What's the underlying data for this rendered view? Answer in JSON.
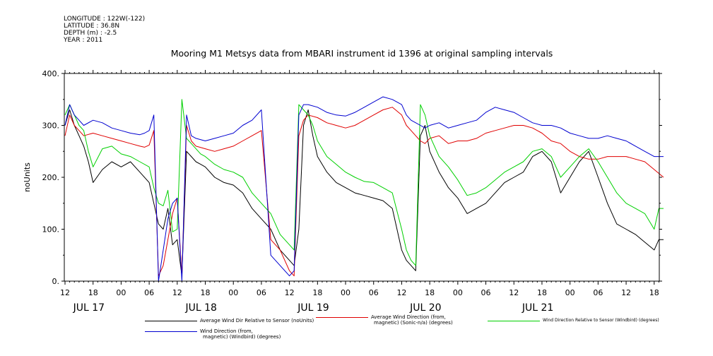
{
  "meta": {
    "longitude": "LONGITUDE : 122W(-122)",
    "latitude": "LATITUDE : 36.8N",
    "depth": "DEPTH (m) : -2.5",
    "year": "YEAR : 2011"
  },
  "chart_data": {
    "type": "line",
    "title": "Mooring M1 Metsys data from MBARI instrument id 1396 at original sampling intervals",
    "ylabel": "noUnits",
    "ylim": [
      0,
      400
    ],
    "yticks": [
      0,
      100,
      200,
      300,
      400
    ],
    "xlim_hours": [
      0,
      128
    ],
    "xticks": [
      {
        "h": 0,
        "label": "12"
      },
      {
        "h": 6,
        "label": "18"
      },
      {
        "h": 12,
        "label": "00"
      },
      {
        "h": 18,
        "label": "06"
      },
      {
        "h": 24,
        "label": "12"
      },
      {
        "h": 30,
        "label": "18"
      },
      {
        "h": 36,
        "label": "00"
      },
      {
        "h": 42,
        "label": "06"
      },
      {
        "h": 48,
        "label": "12"
      },
      {
        "h": 54,
        "label": "18"
      },
      {
        "h": 60,
        "label": "00"
      },
      {
        "h": 66,
        "label": "06"
      },
      {
        "h": 72,
        "label": "12"
      },
      {
        "h": 78,
        "label": "18"
      },
      {
        "h": 84,
        "label": "00"
      },
      {
        "h": 90,
        "label": "06"
      },
      {
        "h": 96,
        "label": "12"
      },
      {
        "h": 102,
        "label": "18"
      },
      {
        "h": 108,
        "label": "00"
      },
      {
        "h": 114,
        "label": "06"
      },
      {
        "h": 120,
        "label": "12"
      },
      {
        "h": 126,
        "label": "18"
      }
    ],
    "days": [
      {
        "h": 3,
        "label": "JUL 17"
      },
      {
        "h": 27,
        "label": "JUL 18"
      },
      {
        "h": 51,
        "label": "JUL 19"
      },
      {
        "h": 75,
        "label": "JUL 20"
      },
      {
        "h": 99,
        "label": "JUL 21"
      }
    ],
    "series": [
      {
        "name": "Average Wind Dir Relative to Sensor (noUnits)",
        "color": "#000000",
        "x": [
          0,
          1,
          2,
          3,
          4,
          5,
          6,
          8,
          10,
          12,
          14,
          16,
          18,
          19,
          20,
          21,
          22,
          23,
          24,
          25,
          26,
          27,
          28,
          29,
          30,
          32,
          34,
          36,
          38,
          40,
          42,
          44,
          46,
          48,
          49,
          50,
          51,
          52,
          53,
          54,
          56,
          58,
          60,
          62,
          64,
          66,
          68,
          70,
          72,
          73,
          74,
          75,
          76,
          77,
          78,
          80,
          82,
          84,
          86,
          88,
          90,
          92,
          94,
          96,
          98,
          100,
          102,
          104,
          106,
          108,
          110,
          112,
          114,
          116,
          118,
          120,
          122,
          124,
          126,
          127,
          128
        ],
        "y": [
          300,
          330,
          300,
          280,
          260,
          230,
          190,
          215,
          230,
          220,
          230,
          210,
          190,
          150,
          110,
          100,
          140,
          70,
          80,
          10,
          250,
          240,
          230,
          225,
          220,
          200,
          190,
          185,
          170,
          140,
          120,
          100,
          60,
          40,
          30,
          100,
          300,
          330,
          280,
          240,
          210,
          190,
          180,
          170,
          165,
          160,
          155,
          140,
          60,
          40,
          30,
          20,
          280,
          300,
          250,
          210,
          180,
          160,
          130,
          140,
          150,
          170,
          190,
          200,
          210,
          240,
          250,
          230,
          170,
          200,
          230,
          250,
          200,
          150,
          110,
          100,
          90,
          75,
          60,
          80,
          80
        ]
      },
      {
        "name": "Average Wind Direction (from, magnetic) (Sonic-n/a) (degrees)",
        "color": "#e00000",
        "x": [
          0,
          1,
          2,
          3,
          4,
          6,
          8,
          10,
          12,
          14,
          16,
          17,
          18,
          19,
          20,
          21,
          22,
          23,
          24,
          25,
          26,
          27,
          28,
          30,
          32,
          34,
          36,
          38,
          40,
          42,
          44,
          46,
          48,
          49,
          50,
          51,
          52,
          54,
          56,
          58,
          60,
          62,
          64,
          66,
          68,
          70,
          72,
          73,
          74,
          75,
          76,
          77,
          78,
          80,
          82,
          84,
          86,
          88,
          90,
          92,
          94,
          96,
          98,
          100,
          102,
          104,
          106,
          108,
          110,
          112,
          114,
          116,
          118,
          120,
          122,
          124,
          126,
          128
        ],
        "y": [
          280,
          320,
          300,
          290,
          280,
          285,
          280,
          275,
          270,
          265,
          260,
          258,
          262,
          290,
          10,
          30,
          80,
          130,
          160,
          10,
          300,
          270,
          260,
          255,
          250,
          255,
          260,
          270,
          280,
          290,
          80,
          60,
          20,
          10,
          280,
          310,
          320,
          315,
          305,
          300,
          295,
          300,
          310,
          320,
          330,
          335,
          320,
          300,
          290,
          280,
          270,
          265,
          275,
          280,
          265,
          270,
          270,
          275,
          285,
          290,
          295,
          300,
          300,
          295,
          285,
          270,
          265,
          250,
          240,
          235,
          235,
          240,
          240,
          240,
          235,
          230,
          215,
          200
        ]
      },
      {
        "name": "Wind Direction Relative to Sensor (Windbird) (degrees)",
        "color": "#00d000",
        "x": [
          0,
          1,
          2,
          3,
          4,
          5,
          6,
          8,
          10,
          12,
          14,
          16,
          18,
          19,
          20,
          21,
          22,
          23,
          24,
          25,
          26,
          27,
          28,
          29,
          30,
          32,
          34,
          36,
          38,
          40,
          42,
          44,
          46,
          48,
          49,
          50,
          51,
          52,
          53,
          54,
          56,
          58,
          60,
          62,
          64,
          66,
          68,
          70,
          72,
          73,
          74,
          75,
          76,
          77,
          78,
          80,
          82,
          84,
          86,
          88,
          90,
          92,
          94,
          96,
          98,
          100,
          102,
          104,
          106,
          108,
          110,
          112,
          114,
          116,
          118,
          120,
          122,
          124,
          126,
          127,
          128
        ],
        "y": [
          320,
          340,
          320,
          300,
          290,
          250,
          220,
          255,
          260,
          245,
          240,
          230,
          220,
          180,
          150,
          145,
          175,
          95,
          100,
          350,
          275,
          265,
          255,
          245,
          240,
          225,
          215,
          210,
          200,
          170,
          150,
          130,
          90,
          70,
          60,
          340,
          330,
          320,
          300,
          270,
          240,
          225,
          210,
          200,
          192,
          190,
          180,
          170,
          100,
          60,
          40,
          30,
          340,
          320,
          280,
          240,
          220,
          195,
          165,
          170,
          180,
          195,
          210,
          220,
          230,
          250,
          255,
          240,
          200,
          220,
          240,
          255,
          230,
          200,
          170,
          150,
          140,
          130,
          100,
          140,
          140
        ]
      },
      {
        "name": "Wind Direction (from, magnetic) (Windbird) (degrees)",
        "color": "#0000d0",
        "x": [
          0,
          1,
          2,
          3,
          4,
          6,
          8,
          10,
          12,
          14,
          16,
          17,
          18,
          19,
          20,
          21,
          22,
          23,
          24,
          25,
          26,
          27,
          28,
          30,
          32,
          34,
          36,
          38,
          40,
          42,
          44,
          46,
          48,
          49,
          50,
          51,
          52,
          54,
          56,
          58,
          60,
          62,
          64,
          66,
          68,
          70,
          72,
          73,
          74,
          75,
          76,
          77,
          78,
          80,
          82,
          84,
          86,
          88,
          90,
          92,
          94,
          96,
          98,
          100,
          102,
          104,
          106,
          108,
          110,
          112,
          114,
          116,
          118,
          120,
          122,
          124,
          126,
          128
        ],
        "y": [
          300,
          340,
          320,
          310,
          300,
          310,
          305,
          295,
          290,
          285,
          282,
          285,
          290,
          320,
          0,
          60,
          120,
          150,
          160,
          0,
          320,
          280,
          275,
          270,
          275,
          280,
          285,
          300,
          310,
          330,
          50,
          30,
          10,
          20,
          320,
          340,
          340,
          335,
          325,
          320,
          318,
          325,
          335,
          345,
          355,
          350,
          340,
          320,
          310,
          305,
          300,
          295,
          300,
          305,
          295,
          300,
          305,
          310,
          325,
          335,
          330,
          325,
          315,
          305,
          300,
          300,
          295,
          285,
          280,
          275,
          275,
          280,
          275,
          270,
          260,
          250,
          240,
          240
        ]
      }
    ]
  },
  "legend": [
    {
      "line1": "Average Wind Dir Relative to Sensor (noUnits)",
      "line2": ""
    },
    {
      "line1": "Average Wind Direction (from,",
      "line2": "magnetic) (Sonic-n/a) (degrees)"
    },
    {
      "line1": "Wind Direction Relative to Sensor (Windbird) (degrees)",
      "line2": ""
    },
    {
      "line1": "Wind Direction (from,",
      "line2": "magnetic) (Windbird) (degrees)"
    }
  ]
}
